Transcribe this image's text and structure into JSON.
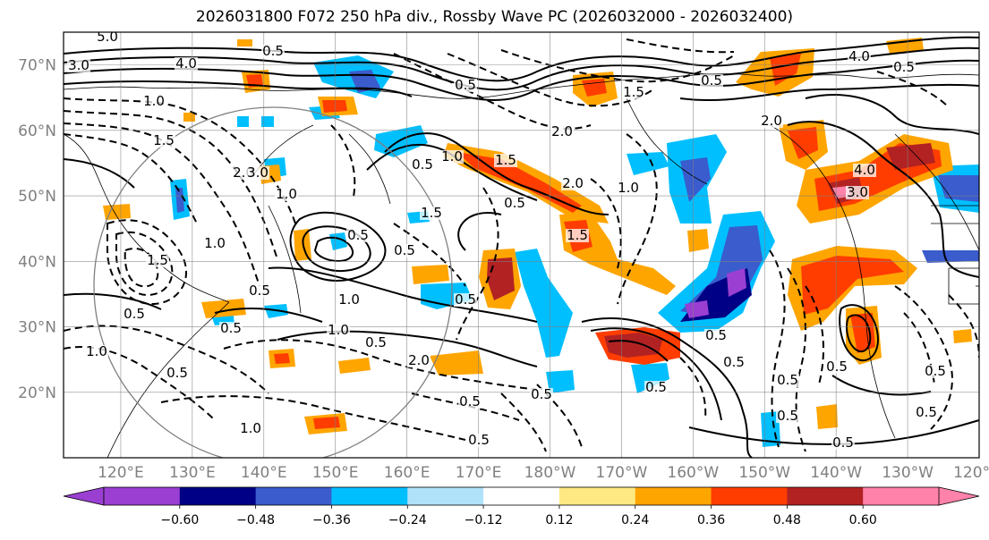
{
  "title": "2026031800 F072 250 hPa div., Rossby Wave PC (2026032000 - 2026032400)",
  "map": {
    "projection": "cylindrical",
    "lon_range": [
      "112°E",
      "120°W"
    ],
    "lat_range": [
      "10°N",
      "75°N"
    ],
    "lat_labels": [
      "70°N",
      "60°N",
      "50°N",
      "40°N",
      "30°N",
      "20°N"
    ],
    "lon_labels": [
      "120°E",
      "130°E",
      "140°E",
      "150°E",
      "160°E",
      "170°E",
      "180°W",
      "170°W",
      "160°W",
      "150°W",
      "140°W",
      "130°W",
      "120°W"
    ],
    "contour_labels": [
      "5.0",
      "3.0",
      "4.0",
      "1.0",
      "0.5",
      "1.5",
      "2.0",
      "1.0",
      "0.5",
      "1.5",
      "1.0",
      "0.5",
      "1.0",
      "0.5",
      "0.5",
      "1.0",
      "2.0",
      "0.5",
      "1.5",
      "1.0",
      "4.0",
      "3.0",
      "2.0",
      "0.5",
      "1.5",
      "0.5",
      "2.0",
      "0.5",
      "0.5",
      "0.5",
      "0.5",
      "0.5",
      "4.0",
      "0.5",
      "0.5",
      "1.0",
      "0.5",
      "1.0",
      "0.5",
      "3.0",
      "1.5",
      "2.0",
      "1.5",
      "1.0",
      "0.5",
      "0.5",
      "0.5",
      "0.5",
      "0.5",
      "0.5",
      "0.5",
      "0.5",
      "0.5"
    ]
  },
  "colorbar": {
    "tick_labels": [
      "−0.60",
      "−0.48",
      "−0.36",
      "−0.24",
      "−0.12",
      "0.12",
      "0.24",
      "0.36",
      "0.48",
      "0.60"
    ],
    "colors": [
      "#9a3fd2",
      "#000086",
      "#3a5ccc",
      "#00bfff",
      "#b0e2fa",
      "#ffffff",
      "#ffe983",
      "#ffa500",
      "#ff3d00",
      "#b22222",
      "#ff82aa"
    ],
    "below_color": "#9a3fd2",
    "above_color": "#ff82aa"
  },
  "colors": {
    "coast": "#000000",
    "grid": "#808080",
    "circle": "#808080"
  }
}
